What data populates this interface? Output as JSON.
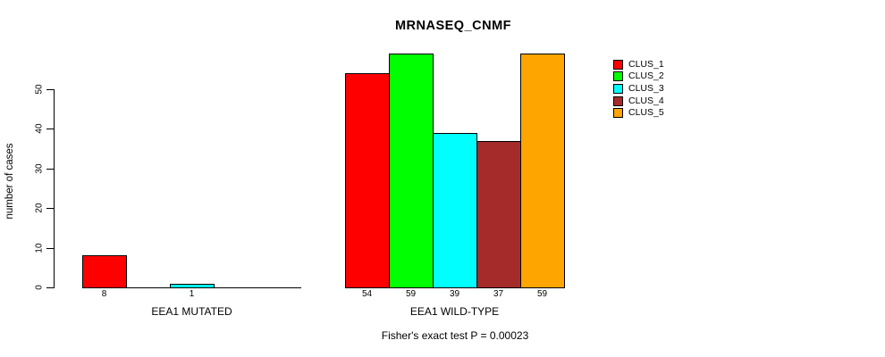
{
  "chart_data": {
    "type": "bar",
    "title": "MRNASEQ_CNMF",
    "ylabel": "number of cases",
    "yticks": [
      0,
      10,
      20,
      30,
      40,
      50
    ],
    "ylim": [
      0,
      59
    ],
    "grid": false,
    "legend_position": "right",
    "caption": "Fisher's exact test P = 0.00023",
    "series_colors": [
      "#ff0000",
      "#00ff00",
      "#00ffff",
      "#a52a2a",
      "#ffa500"
    ],
    "groups": [
      {
        "label": "EEA1 MUTATED",
        "values": [
          8,
          0,
          1,
          0,
          0
        ]
      },
      {
        "label": "EEA1 WILD-TYPE",
        "values": [
          54,
          59,
          39,
          37,
          59
        ]
      }
    ],
    "legend": [
      {
        "label": "CLUS_1",
        "color": "#ff0000"
      },
      {
        "label": "CLUS_2",
        "color": "#00ff00"
      },
      {
        "label": "CLUS_3",
        "color": "#00ffff"
      },
      {
        "label": "CLUS_4",
        "color": "#a52a2a"
      },
      {
        "label": "CLUS_5",
        "color": "#ffa500"
      }
    ]
  }
}
